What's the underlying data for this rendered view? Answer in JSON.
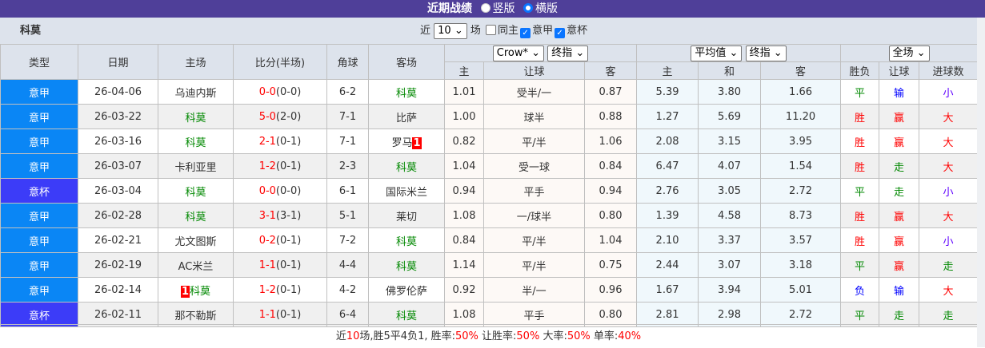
{
  "title": {
    "text": "近期战绩",
    "opt1": "竖版",
    "opt2": "横版",
    "selected": "横版"
  },
  "team": "科莫",
  "filters": {
    "prefix": "近",
    "count": "10",
    "suffix": "场",
    "same_home": "同主",
    "same_home_checked": false,
    "league1": "意甲",
    "league1_checked": true,
    "league2": "意杯",
    "league2_checked": true
  },
  "headers": {
    "type": "类型",
    "date": "日期",
    "home": "主场",
    "score": "比分(半场)",
    "corner": "角球",
    "away": "客场",
    "odds1_select": "Crow*",
    "odds1_mode": "终指",
    "odds2_select": "平均值",
    "odds2_mode": "终指",
    "result_select": "全场",
    "sub": [
      "主",
      "让球",
      "客",
      "主",
      "和",
      "客",
      "胜负",
      "让球",
      "进球数"
    ]
  },
  "colors": {
    "league": "#0a86f5",
    "cup": "#3c3cf8",
    "title_bar": "#4f3f99",
    "win": "#ff0000",
    "draw": "#008800",
    "loss": "#0000ff",
    "small": "#6000ff"
  },
  "rows": [
    {
      "type": "意甲",
      "date": "26-04-06",
      "home": "乌迪内斯",
      "home_card": "",
      "score": "0-0",
      "half": "(0-0)",
      "corner": "6-2",
      "away": "科莫",
      "away_card": "",
      "c_h": "1.01",
      "c_hc": "受半/一",
      "c_a": "0.87",
      "a_h": "5.39",
      "a_d": "3.80",
      "a_a": "1.66",
      "wl": "平",
      "hc": "输",
      "ou": "小"
    },
    {
      "type": "意甲",
      "date": "26-03-22",
      "home": "科莫",
      "home_card": "",
      "score": "5-0",
      "half": "(2-0)",
      "corner": "7-1",
      "away": "比萨",
      "away_card": "",
      "c_h": "1.00",
      "c_hc": "球半",
      "c_a": "0.88",
      "a_h": "1.27",
      "a_d": "5.69",
      "a_a": "11.20",
      "wl": "胜",
      "hc": "赢",
      "ou": "大"
    },
    {
      "type": "意甲",
      "date": "26-03-16",
      "home": "科莫",
      "home_card": "",
      "score": "2-1",
      "half": "(0-1)",
      "corner": "7-1",
      "away": "罗马",
      "away_card": "1",
      "c_h": "0.82",
      "c_hc": "平/半",
      "c_a": "1.06",
      "a_h": "2.08",
      "a_d": "3.15",
      "a_a": "3.95",
      "wl": "胜",
      "hc": "赢",
      "ou": "大"
    },
    {
      "type": "意甲",
      "date": "26-03-07",
      "home": "卡利亚里",
      "home_card": "",
      "score": "1-2",
      "half": "(0-1)",
      "corner": "2-3",
      "away": "科莫",
      "away_card": "",
      "c_h": "1.04",
      "c_hc": "受一球",
      "c_a": "0.84",
      "a_h": "6.47",
      "a_d": "4.07",
      "a_a": "1.54",
      "wl": "胜",
      "hc": "走",
      "ou": "大"
    },
    {
      "type": "意杯",
      "date": "26-03-04",
      "home": "科莫",
      "home_card": "",
      "score": "0-0",
      "half": "(0-0)",
      "corner": "6-1",
      "away": "国际米兰",
      "away_card": "",
      "c_h": "0.94",
      "c_hc": "平手",
      "c_a": "0.94",
      "a_h": "2.76",
      "a_d": "3.05",
      "a_a": "2.72",
      "wl": "平",
      "hc": "走",
      "ou": "小"
    },
    {
      "type": "意甲",
      "date": "26-02-28",
      "home": "科莫",
      "home_card": "",
      "score": "3-1",
      "half": "(3-1)",
      "corner": "5-1",
      "away": "莱切",
      "away_card": "",
      "c_h": "1.08",
      "c_hc": "一/球半",
      "c_a": "0.80",
      "a_h": "1.39",
      "a_d": "4.58",
      "a_a": "8.73",
      "wl": "胜",
      "hc": "赢",
      "ou": "大"
    },
    {
      "type": "意甲",
      "date": "26-02-21",
      "home": "尤文图斯",
      "home_card": "",
      "score": "0-2",
      "half": "(0-1)",
      "corner": "7-2",
      "away": "科莫",
      "away_card": "",
      "c_h": "0.84",
      "c_hc": "平/半",
      "c_a": "1.04",
      "a_h": "2.10",
      "a_d": "3.37",
      "a_a": "3.57",
      "wl": "胜",
      "hc": "赢",
      "ou": "小"
    },
    {
      "type": "意甲",
      "date": "26-02-19",
      "home": "AC米兰",
      "home_card": "",
      "score": "1-1",
      "half": "(0-1)",
      "corner": "4-4",
      "away": "科莫",
      "away_card": "",
      "c_h": "1.14",
      "c_hc": "平/半",
      "c_a": "0.75",
      "a_h": "2.44",
      "a_d": "3.07",
      "a_a": "3.18",
      "wl": "平",
      "hc": "赢",
      "ou": "走"
    },
    {
      "type": "意甲",
      "date": "26-02-14",
      "home": "科莫",
      "home_card": "1",
      "score": "1-2",
      "half": "(0-1)",
      "corner": "4-2",
      "away": "佛罗伦萨",
      "away_card": "",
      "c_h": "0.92",
      "c_hc": "半/一",
      "c_a": "0.96",
      "a_h": "1.67",
      "a_d": "3.94",
      "a_a": "5.01",
      "wl": "负",
      "hc": "输",
      "ou": "大"
    },
    {
      "type": "意杯",
      "date": "26-02-11",
      "home": "那不勒斯",
      "home_card": "",
      "score": "1-1",
      "half": "(0-1)",
      "corner": "6-4",
      "away": "科莫",
      "away_card": "",
      "c_h": "1.08",
      "c_hc": "平手",
      "c_a": "0.80",
      "a_h": "2.81",
      "a_d": "2.98",
      "a_a": "2.72",
      "wl": "平",
      "hc": "走",
      "ou": "走"
    }
  ],
  "footer": {
    "p1": "近",
    "n": "10",
    "p2": "场,胜5平4负1, 胜率:",
    "win_rate": "50%",
    "p3": " 让胜率:",
    "hc_rate": "50%",
    "p4": " 大率:",
    "big_rate": "50%",
    "p5": " 单率:",
    "odd_rate": "40%"
  }
}
